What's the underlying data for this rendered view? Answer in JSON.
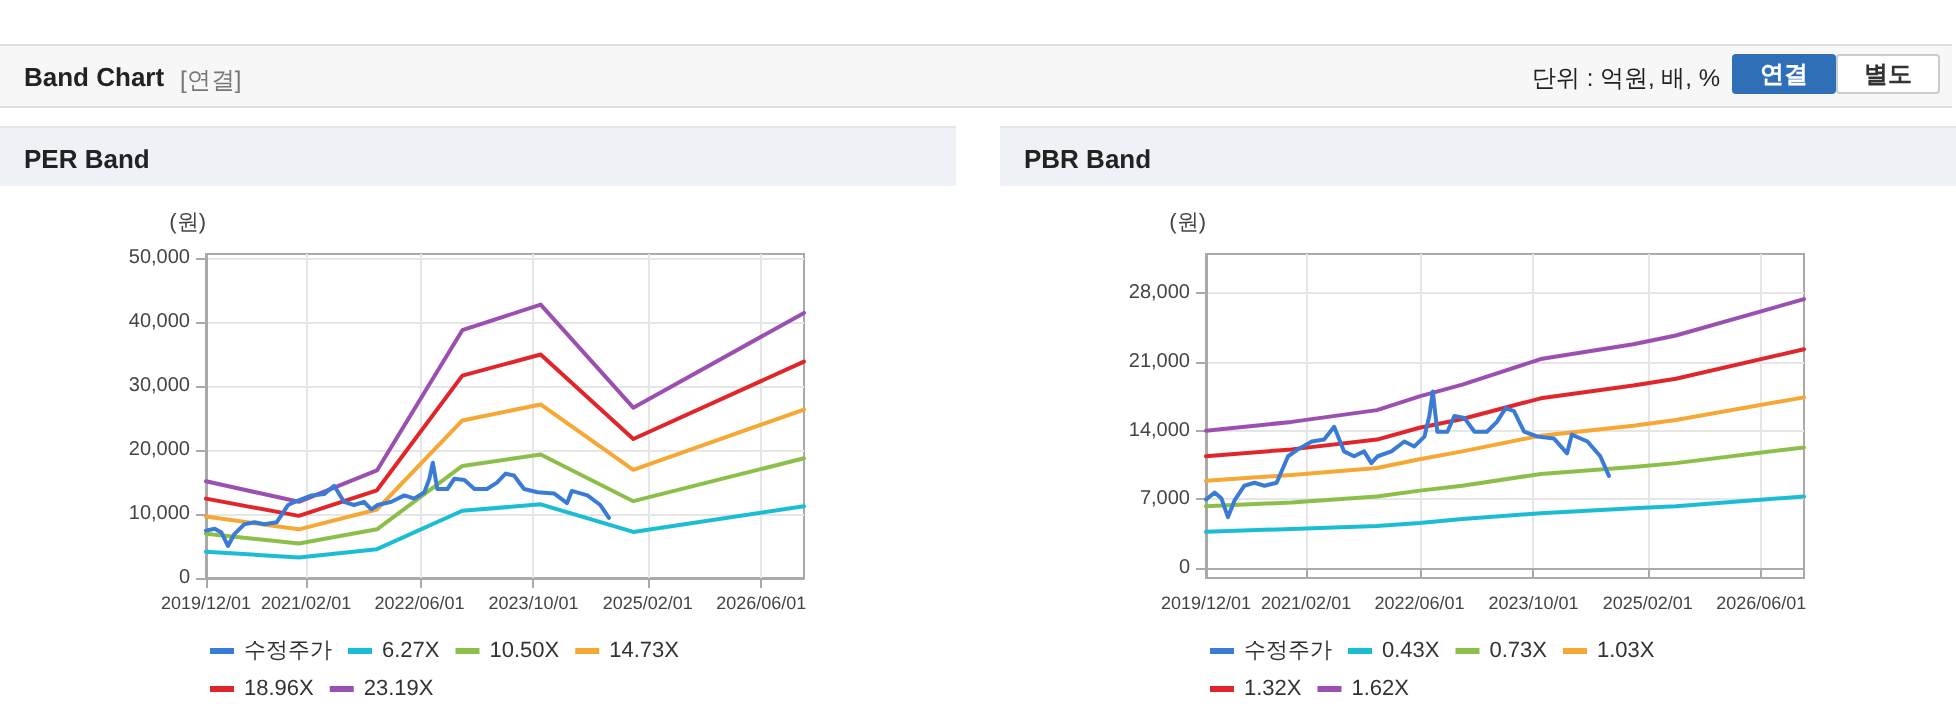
{
  "chart_data": [
    {
      "type": "other",
      "title": "Band Chart",
      "annotations": [
        "[연결]",
        "단위 : 억원, 배, %",
        "연결",
        "별도"
      ]
    },
    {
      "type": "line",
      "title": "PER Band",
      "ylabel": "(원)",
      "legend": "bottom",
      "grid": true,
      "marker": "none",
      "line_style": "solid",
      "x": [
        "2019-12-01",
        "2021-01-01",
        "2021-12-01",
        "2022-12-01",
        "2023-11-01",
        "2024-12-01",
        "2026-12-01"
      ],
      "xlim": [
        "2019-12-01",
        "2026-12-01"
      ],
      "xticks": [
        {
          "value": "2019-12-01",
          "label": "2019/12/01"
        },
        {
          "value": "2021-02-01",
          "label": "2021/02/01"
        },
        {
          "value": "2022-06-01",
          "label": "2022/06/01"
        },
        {
          "value": "2023-10-01",
          "label": "2023/10/01"
        },
        {
          "value": "2025-02-01",
          "label": "2025/02/01"
        },
        {
          "value": "2026-06-01",
          "label": "2026/06/01"
        }
      ],
      "ylim": [
        0,
        50600
      ],
      "yticks": [
        0,
        {
          "value": 10000,
          "label": "10,000"
        },
        {
          "value": 20000,
          "label": "20,000"
        },
        {
          "value": 30000,
          "label": "30,000"
        },
        {
          "value": 40000,
          "label": "40,000"
        },
        {
          "value": 50000,
          "label": "50,000"
        }
      ],
      "series": [
        {
          "name": "수정주가",
          "color": "#3a7bd5",
          "x": [
            "2019-12-01",
            "2020-01-07",
            "2020-02-05",
            "2020-03-04",
            "2020-04-01",
            "2020-05-13",
            "2020-06-25",
            "2020-08-07",
            "2020-09-28",
            "2020-11-16",
            "2020-12-28",
            "2021-02-25",
            "2021-04-19",
            "2021-06-01",
            "2021-07-13",
            "2021-08-25",
            "2021-10-07",
            "2021-11-07",
            "2021-12-04",
            "2022-02-01",
            "2022-03-28",
            "2022-05-10",
            "2022-06-22",
            "2022-07-13",
            "2022-07-28",
            "2022-08-16",
            "2022-09-28",
            "2022-10-28",
            "2022-12-10",
            "2023-01-22",
            "2023-03-16",
            "2023-04-28",
            "2023-06-04",
            "2023-07-10",
            "2023-08-22",
            "2023-10-19",
            "2023-12-28",
            "2024-02-22",
            "2024-03-13",
            "2024-05-19",
            "2024-07-13",
            "2024-08-19"
          ],
          "values": [
            7400,
            7700,
            7100,
            5000,
            6900,
            8400,
            8700,
            8400,
            8700,
            11400,
            12100,
            12900,
            13100,
            14400,
            11900,
            11400,
            11900,
            10700,
            11400,
            11900,
            12900,
            12400,
            13400,
            15500,
            18000,
            13900,
            13900,
            15500,
            15300,
            13900,
            13900,
            14900,
            16300,
            16000,
            13900,
            13400,
            13200,
            11700,
            13600,
            12900,
            11400,
            9400
          ]
        },
        {
          "name": "6.27X",
          "color": "#1bbdd4",
          "values": [
            4100,
            3200,
            4500,
            10500,
            11500,
            7200,
            11200
          ]
        },
        {
          "name": "10.50X",
          "color": "#8cbf4a",
          "values": [
            6900,
            5400,
            7600,
            17500,
            19300,
            12000,
            18700
          ]
        },
        {
          "name": "14.73X",
          "color": "#f7a733",
          "values": [
            9600,
            7600,
            10700,
            24600,
            27100,
            16900,
            26300
          ]
        },
        {
          "name": "18.96X",
          "color": "#e0262a",
          "values": [
            12400,
            9700,
            13700,
            31600,
            34900,
            21700,
            33800
          ]
        },
        {
          "name": "23.19X",
          "color": "#9b4fb0",
          "values": [
            15100,
            11900,
            16800,
            38700,
            42700,
            26600,
            41400
          ]
        }
      ]
    },
    {
      "type": "line",
      "title": "PBR Band",
      "ylabel": "(원)",
      "legend": "bottom",
      "grid": true,
      "marker": "none",
      "line_style": "solid",
      "x": [
        "2019-12-01",
        "2020-12-01",
        "2021-12-01",
        "2022-06-01",
        "2022-12-01",
        "2023-11-01",
        "2024-12-01",
        "2025-06-01",
        "2026-12-01"
      ],
      "xlim": [
        "2019-12-01",
        "2026-12-01"
      ],
      "xticks": [
        {
          "value": "2019-12-01",
          "label": "2019/12/01"
        },
        {
          "value": "2021-02-01",
          "label": "2021/02/01"
        },
        {
          "value": "2022-06-01",
          "label": "2022/06/01"
        },
        {
          "value": "2023-10-01",
          "label": "2023/10/01"
        },
        {
          "value": "2025-02-01",
          "label": "2025/02/01"
        },
        {
          "value": "2026-06-01",
          "label": "2026/06/01"
        }
      ],
      "ylim": [
        -1000,
        32000
      ],
      "yticks": [
        0,
        {
          "value": 7000,
          "label": "7,000"
        },
        {
          "value": 14000,
          "label": "14,000"
        },
        {
          "value": 21000,
          "label": "21,000"
        },
        {
          "value": 28000,
          "label": "28,000"
        }
      ],
      "series": [
        {
          "name": "수정주가",
          "color": "#3a7bd5",
          "x": [
            "2019-12-01",
            "2020-01-07",
            "2020-02-05",
            "2020-03-04",
            "2020-04-01",
            "2020-05-13",
            "2020-06-25",
            "2020-08-07",
            "2020-09-28",
            "2020-11-16",
            "2020-12-28",
            "2021-02-25",
            "2021-04-19",
            "2021-06-01",
            "2021-07-13",
            "2021-08-25",
            "2021-10-07",
            "2021-11-07",
            "2021-12-04",
            "2022-02-01",
            "2022-03-28",
            "2022-05-10",
            "2022-06-22",
            "2022-07-13",
            "2022-07-28",
            "2022-08-16",
            "2022-09-28",
            "2022-10-28",
            "2022-12-10",
            "2023-01-22",
            "2023-03-16",
            "2023-04-28",
            "2023-06-04",
            "2023-07-10",
            "2023-08-22",
            "2023-10-19",
            "2023-12-28",
            "2024-02-22",
            "2024-03-13",
            "2024-05-19",
            "2024-07-13",
            "2024-08-19"
          ],
          "values": [
            7000,
            7700,
            7100,
            5200,
            6900,
            8400,
            8700,
            8400,
            8700,
            11400,
            12100,
            12900,
            13100,
            14400,
            11900,
            11400,
            11900,
            10700,
            11400,
            11900,
            12900,
            12400,
            13400,
            15500,
            18000,
            13900,
            13900,
            15500,
            15300,
            13900,
            13900,
            14900,
            16300,
            16000,
            13900,
            13400,
            13200,
            11700,
            13600,
            12900,
            11400,
            9400
          ]
        },
        {
          "name": "0.43X",
          "color": "#1bbdd4",
          "values": [
            3700,
            4000,
            4300,
            4600,
            5000,
            5600,
            6100,
            6300,
            7300
          ]
        },
        {
          "name": "0.73X",
          "color": "#8cbf4a",
          "values": [
            6300,
            6700,
            7300,
            7900,
            8400,
            9600,
            10300,
            10700,
            12300
          ]
        },
        {
          "name": "1.03X",
          "color": "#f7a733",
          "values": [
            8900,
            9500,
            10200,
            11100,
            11900,
            13500,
            14500,
            15100,
            17400
          ]
        },
        {
          "name": "1.32X",
          "color": "#e0262a",
          "values": [
            11400,
            12100,
            13100,
            14300,
            15200,
            17300,
            18600,
            19300,
            22300
          ]
        },
        {
          "name": "1.62X",
          "color": "#9b4fb0",
          "values": [
            14000,
            14900,
            16100,
            17500,
            18700,
            21300,
            22800,
            23700,
            27400
          ]
        }
      ]
    }
  ]
}
